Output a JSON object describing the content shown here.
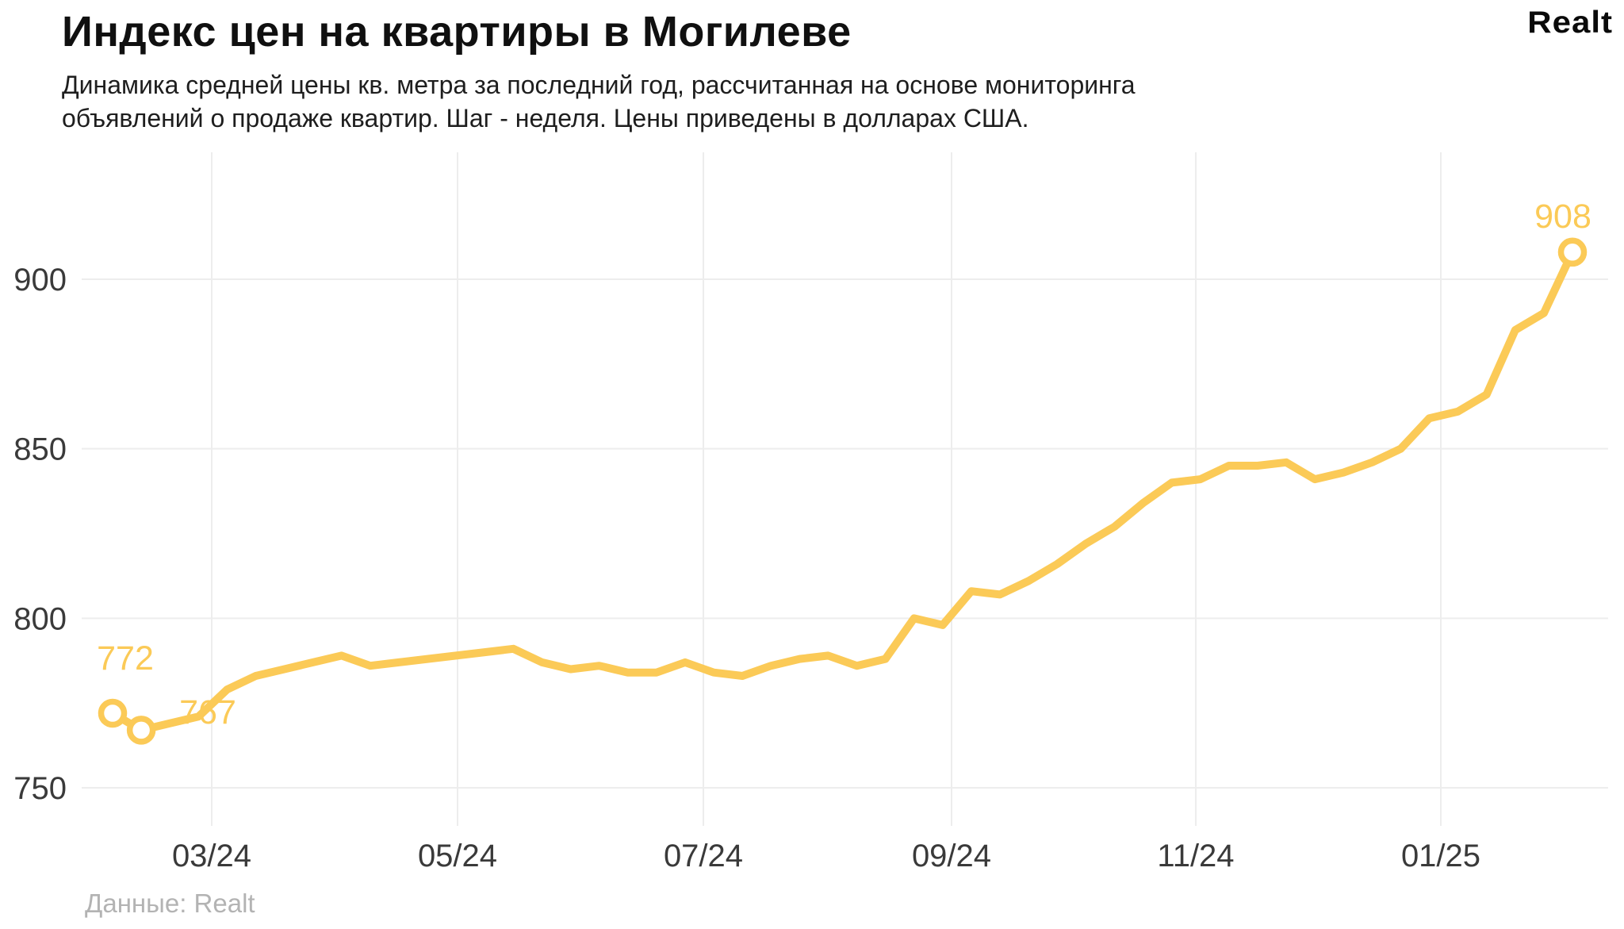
{
  "header": {
    "title": "Индекс цен на квартиры в Могилеве",
    "subtitle_line1": "Динамика средней цены кв. метра за последний год, рассчитанная на основе мониторинга",
    "subtitle_line2": "объявлений о продаже квартир. Шаг - неделя. Цены приведены в долларах США.",
    "logo": "Realt"
  },
  "footer": {
    "source": "Данные: Realt"
  },
  "chart_data": {
    "type": "line",
    "title": "Индекс цен на квартиры в Могилеве",
    "x_unit": "week",
    "x_tick_labels": [
      "03/24",
      "05/24",
      "07/24",
      "09/24",
      "11/24",
      "01/25"
    ],
    "y_ticks": [
      900,
      850,
      800,
      750
    ],
    "ylim": [
      738,
      937
    ],
    "grid": true,
    "values": [
      772,
      767,
      769,
      771,
      779,
      783,
      785,
      787,
      789,
      786,
      787,
      788,
      789,
      790,
      791,
      787,
      785,
      786,
      784,
      784,
      787,
      784,
      783,
      786,
      788,
      789,
      786,
      788,
      800,
      798,
      808,
      807,
      811,
      816,
      822,
      827,
      834,
      840,
      841,
      845,
      845,
      846,
      841,
      843,
      846,
      850,
      859,
      861,
      866,
      885,
      890,
      908
    ],
    "point_labels": [
      {
        "index": 0,
        "label": "772"
      },
      {
        "index": 1,
        "label": "767"
      },
      {
        "index": 51,
        "label": "908"
      }
    ],
    "marker_indices": [
      0,
      1,
      51
    ],
    "colors": {
      "line": "#FBCA57",
      "point_label": "#FBCA57",
      "grid": "#ededed",
      "tick_text": "#3a3a3a",
      "marker_fill": "#ffffff"
    }
  }
}
